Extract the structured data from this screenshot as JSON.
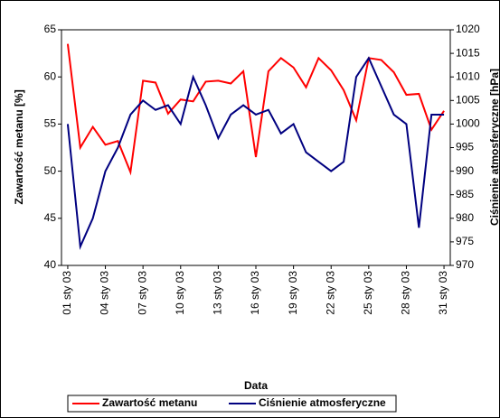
{
  "chart_data": {
    "type": "line",
    "x_label": "Data",
    "y_label": "Zawartość metanu [%]",
    "y2_label": "Ciśnienie atmosferyczne [hPa]",
    "categories": [
      "01 sty 03",
      null,
      null,
      "04 sty 03",
      null,
      null,
      "07 sty 03",
      null,
      null,
      "10 sty 03",
      null,
      null,
      "13 sty 03",
      null,
      null,
      "16 sty 03",
      null,
      null,
      "19 sty 03",
      null,
      null,
      "22 sty 03",
      null,
      null,
      "25 sty 03",
      null,
      null,
      "28 sty 03",
      null,
      null,
      "31 sty 03"
    ],
    "series": [
      {
        "name": "Zawartość metanu",
        "color": "#ff0000",
        "values": [
          63.5,
          52.5,
          54.7,
          52.8,
          53.2,
          49.9,
          59.6,
          59.4,
          56.1,
          57.6,
          57.4,
          59.5,
          59.6,
          59.3,
          60.6,
          51.5,
          60.6,
          62.0,
          61.0,
          58.9,
          62.0,
          60.7,
          58.6,
          55.4,
          62.0,
          61.8,
          60.5,
          58.1,
          58.2,
          54.4,
          56.4
        ]
      },
      {
        "name": "Ciśnienie atmosferyczne",
        "color": "#000080",
        "axis": "y2",
        "values": [
          1000,
          974,
          980,
          990,
          995,
          1002,
          1005,
          1003,
          1004,
          1000,
          1010,
          1004,
          997,
          1002,
          1004,
          1002,
          1003,
          998,
          1000,
          994,
          992,
          990,
          992,
          1010,
          1014,
          1008,
          1002,
          1000,
          978,
          1002,
          1002
        ]
      }
    ],
    "ylim": [
      40,
      65
    ],
    "yticks": [
      40,
      45,
      50,
      55,
      60,
      65
    ],
    "y2lim": [
      970,
      1020
    ],
    "y2ticks": [
      970,
      975,
      980,
      985,
      990,
      995,
      1000,
      1005,
      1010,
      1015,
      1020
    ],
    "legend": "bottom"
  }
}
